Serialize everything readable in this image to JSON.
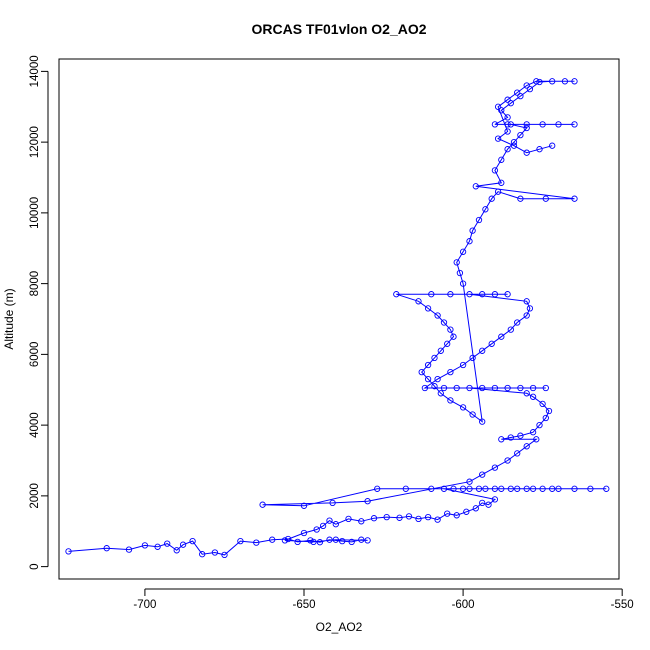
{
  "chart_data": {
    "type": "scatter",
    "title": "ORCAS TF01vlon O2_AO2",
    "xlabel": "O2_AO2",
    "ylabel": "Altitude (m)",
    "xlim": [
      -727,
      -551
    ],
    "ylim": [
      -350,
      14350
    ],
    "x_ticks": [
      -700,
      -650,
      -600,
      -550
    ],
    "y_ticks": [
      0,
      2000,
      4000,
      6000,
      8000,
      10000,
      12000,
      14000
    ],
    "grid": false,
    "legend": "none",
    "series": [
      {
        "marker": "open-circle",
        "line": true,
        "color": "#0000ff",
        "points": [
          [
            -724,
            430
          ],
          [
            -712,
            520
          ],
          [
            -705,
            480
          ],
          [
            -700,
            600
          ],
          [
            -696,
            560
          ],
          [
            -693,
            650
          ],
          [
            -690,
            460
          ],
          [
            -688,
            620
          ],
          [
            -685,
            720
          ],
          [
            -682,
            350
          ],
          [
            -678,
            400
          ],
          [
            -675,
            330
          ],
          [
            -670,
            720
          ],
          [
            -665,
            680
          ],
          [
            -660,
            760
          ],
          [
            -655,
            780
          ],
          [
            -652,
            700
          ],
          [
            -648,
            740
          ],
          [
            -645,
            690
          ],
          [
            -642,
            760
          ],
          [
            -638,
            720
          ],
          [
            -635,
            700
          ],
          [
            -632,
            760
          ],
          [
            -630,
            740
          ],
          [
            -640,
            760
          ],
          [
            -647,
            700
          ],
          [
            -656,
            740
          ],
          [
            -650,
            950
          ],
          [
            -646,
            1050
          ],
          [
            -644,
            1150
          ],
          [
            -642,
            1300
          ],
          [
            -640,
            1200
          ],
          [
            -636,
            1350
          ],
          [
            -632,
            1280
          ],
          [
            -628,
            1370
          ],
          [
            -624,
            1400
          ],
          [
            -620,
            1380
          ],
          [
            -617,
            1420
          ],
          [
            -614,
            1350
          ],
          [
            -611,
            1400
          ],
          [
            -608,
            1330
          ],
          [
            -605,
            1500
          ],
          [
            -602,
            1450
          ],
          [
            -599,
            1550
          ],
          [
            -596,
            1650
          ],
          [
            -594,
            1800
          ],
          [
            -592,
            1750
          ],
          [
            -590,
            1900
          ],
          [
            -606,
            2200
          ],
          [
            -600,
            2200
          ],
          [
            -595,
            2200
          ],
          [
            -590,
            2200
          ],
          [
            -585,
            2200
          ],
          [
            -580,
            2200
          ],
          [
            -575,
            2200
          ],
          [
            -570,
            2200
          ],
          [
            -555,
            2200
          ],
          [
            -560,
            2200
          ],
          [
            -565,
            2200
          ],
          [
            -572,
            2200
          ],
          [
            -578,
            2200
          ],
          [
            -583,
            2200
          ],
          [
            -588,
            2200
          ],
          [
            -593,
            2200
          ],
          [
            -598,
            2200
          ],
          [
            -603,
            2200
          ],
          [
            -610,
            2200
          ],
          [
            -618,
            2200
          ],
          [
            -627,
            2200
          ],
          [
            -650,
            1720
          ],
          [
            -663,
            1750
          ],
          [
            -641,
            1800
          ],
          [
            -630,
            1850
          ],
          [
            -598,
            2400
          ],
          [
            -594,
            2600
          ],
          [
            -590,
            2800
          ],
          [
            -586,
            3000
          ],
          [
            -583,
            3200
          ],
          [
            -580,
            3400
          ],
          [
            -577,
            3600
          ],
          [
            -588,
            3600
          ],
          [
            -585,
            3650
          ],
          [
            -582,
            3700
          ],
          [
            -578,
            3800
          ],
          [
            -576,
            4000
          ],
          [
            -574,
            4200
          ],
          [
            -573,
            4400
          ],
          [
            -575,
            4600
          ],
          [
            -578,
            4800
          ],
          [
            -580,
            4900
          ],
          [
            -598,
            5050
          ],
          [
            -594,
            5050
          ],
          [
            -590,
            5050
          ],
          [
            -586,
            5050
          ],
          [
            -582,
            5050
          ],
          [
            -578,
            5050
          ],
          [
            -574,
            5050
          ],
          [
            -602,
            5050
          ],
          [
            -606,
            5050
          ],
          [
            -612,
            5050
          ],
          [
            -608,
            5300
          ],
          [
            -604,
            5500
          ],
          [
            -600,
            5700
          ],
          [
            -597,
            5900
          ],
          [
            -594,
            6100
          ],
          [
            -591,
            6300
          ],
          [
            -588,
            6500
          ],
          [
            -585,
            6700
          ],
          [
            -583,
            6900
          ],
          [
            -580,
            7100
          ],
          [
            -579,
            7300
          ],
          [
            -580,
            7500
          ],
          [
            -598,
            7700
          ],
          [
            -594,
            7700
          ],
          [
            -590,
            7700
          ],
          [
            -586,
            7700
          ],
          [
            -604,
            7700
          ],
          [
            -610,
            7700
          ],
          [
            -621,
            7700
          ],
          [
            -614,
            7500
          ],
          [
            -611,
            7300
          ],
          [
            -608,
            7100
          ],
          [
            -606,
            6900
          ],
          [
            -604,
            6700
          ],
          [
            -603,
            6500
          ],
          [
            -605,
            6300
          ],
          [
            -607,
            6100
          ],
          [
            -609,
            5900
          ],
          [
            -611,
            5700
          ],
          [
            -613,
            5500
          ],
          [
            -611,
            5300
          ],
          [
            -609,
            5100
          ],
          [
            -607,
            4900
          ],
          [
            -604,
            4700
          ],
          [
            -600,
            4500
          ],
          [
            -597,
            4300
          ],
          [
            -594,
            4100
          ],
          [
            -600,
            8000
          ],
          [
            -601,
            8300
          ],
          [
            -602,
            8600
          ],
          [
            -600,
            8900
          ],
          [
            -598,
            9200
          ],
          [
            -597,
            9500
          ],
          [
            -595,
            9800
          ],
          [
            -593,
            10100
          ],
          [
            -591,
            10400
          ],
          [
            -589,
            10600
          ],
          [
            -582,
            10400
          ],
          [
            -574,
            10400
          ],
          [
            -565,
            10400
          ],
          [
            -596,
            10750
          ],
          [
            -588,
            10850
          ],
          [
            -590,
            11200
          ],
          [
            -588,
            11500
          ],
          [
            -586,
            11800
          ],
          [
            -584,
            12000
          ],
          [
            -582,
            12200
          ],
          [
            -580,
            12400
          ],
          [
            -585,
            12500
          ],
          [
            -580,
            12500
          ],
          [
            -575,
            12500
          ],
          [
            -570,
            12500
          ],
          [
            -565,
            12500
          ],
          [
            -586,
            12500
          ],
          [
            -590,
            12500
          ],
          [
            -586,
            12700
          ],
          [
            -588,
            12900
          ],
          [
            -585,
            13100
          ],
          [
            -582,
            13300
          ],
          [
            -579,
            13500
          ],
          [
            -576,
            13700
          ],
          [
            -572,
            13720
          ],
          [
            -568,
            13720
          ],
          [
            -565,
            13720
          ],
          [
            -577,
            13720
          ],
          [
            -580,
            13600
          ],
          [
            -583,
            13400
          ],
          [
            -586,
            13200
          ],
          [
            -589,
            13000
          ],
          [
            -586,
            12300
          ],
          [
            -589,
            12100
          ],
          [
            -584,
            11900
          ],
          [
            -580,
            11700
          ],
          [
            -576,
            11800
          ],
          [
            -572,
            11900
          ]
        ]
      }
    ]
  }
}
